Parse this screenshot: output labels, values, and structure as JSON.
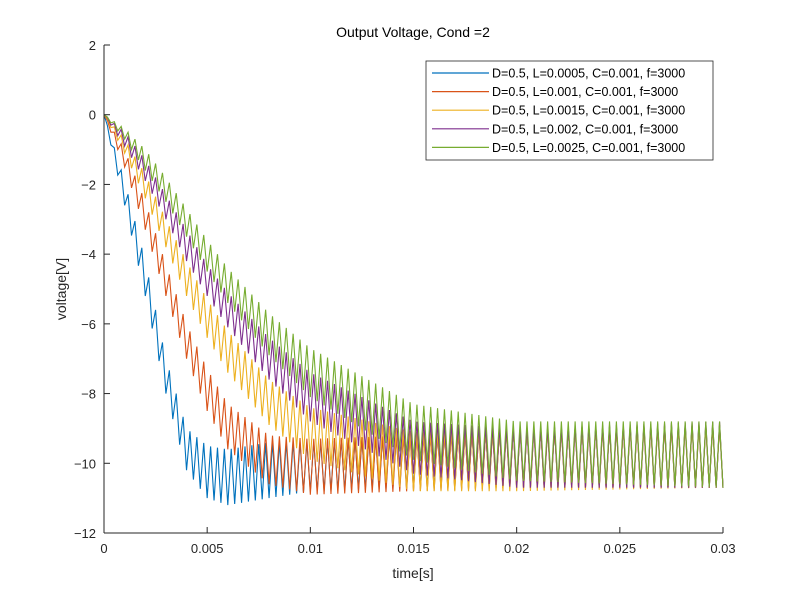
{
  "chart_data": {
    "type": "line",
    "title": "Output Voltage, Cond =2",
    "xlabel": "time[s]",
    "ylabel": "voltage[V]",
    "xlim": [
      0,
      0.03
    ],
    "ylim": [
      -12,
      2
    ],
    "xticks": [
      0,
      0.005,
      0.01,
      0.015,
      0.02,
      0.025,
      0.03
    ],
    "xtick_labels": [
      "0",
      "0.005",
      "0.01",
      "0.015",
      "0.02",
      "0.025",
      "0.03"
    ],
    "yticks": [
      2,
      0,
      -2,
      -4,
      -6,
      -8,
      -10,
      -12
    ],
    "ytick_labels": [
      "2",
      "0",
      "−2",
      "−4",
      "−6",
      "−8",
      "−10",
      "−12"
    ],
    "grid": false,
    "legend_position": "top-right",
    "ripple_frequency_hz": 3000,
    "envelope_times": [
      0,
      0.001,
      0.002,
      0.003,
      0.004,
      0.005,
      0.006,
      0.008,
      0.01,
      0.015,
      0.02,
      0.03
    ],
    "series": [
      {
        "name": "D=0.5, L=0.0005, C=0.001, f=3000",
        "color": "#0072BD",
        "lower": [
          0,
          -2.6,
          -5.2,
          -8.0,
          -10.2,
          -11.0,
          -11.2,
          -11.0,
          -10.8,
          -10.7,
          -10.7,
          -10.7
        ],
        "upper": [
          0,
          -1.9,
          -4.2,
          -7.0,
          -9.0,
          -9.5,
          -9.6,
          -9.4,
          -9.4,
          -9.2,
          -9.0,
          -8.9
        ]
      },
      {
        "name": "D=0.5, L=0.001, C=0.001, f=3000",
        "color": "#D95319",
        "lower": [
          0,
          -1.5,
          -3.3,
          -5.2,
          -7.0,
          -8.5,
          -9.6,
          -10.6,
          -10.9,
          -10.8,
          -10.7,
          -10.7
        ],
        "upper": [
          0,
          -1.0,
          -2.5,
          -4.3,
          -6.0,
          -7.3,
          -8.3,
          -9.2,
          -9.3,
          -9.2,
          -9.0,
          -8.9
        ]
      },
      {
        "name": "D=0.5, L=0.0015, C=0.001, f=3000",
        "color": "#EDB120",
        "lower": [
          0,
          -1.1,
          -2.4,
          -3.8,
          -5.2,
          -6.4,
          -7.4,
          -8.9,
          -9.9,
          -10.8,
          -10.8,
          -10.7
        ],
        "upper": [
          0,
          -0.7,
          -1.7,
          -3.0,
          -4.2,
          -5.3,
          -6.2,
          -7.6,
          -8.4,
          -9.1,
          -9.0,
          -8.9
        ]
      },
      {
        "name": "D=0.5, L=0.002, C=0.001, f=3000",
        "color": "#7E2F8E",
        "lower": [
          0,
          -0.9,
          -1.9,
          -3.0,
          -4.2,
          -5.2,
          -6.1,
          -7.6,
          -8.8,
          -10.3,
          -10.7,
          -10.7
        ],
        "upper": [
          0,
          -0.5,
          -1.3,
          -2.3,
          -3.3,
          -4.3,
          -5.1,
          -6.4,
          -7.4,
          -8.8,
          -9.0,
          -8.8
        ]
      },
      {
        "name": "D=0.5, L=0.0025, C=0.001, f=3000",
        "color": "#77AC30",
        "lower": [
          0,
          -0.7,
          -1.6,
          -2.5,
          -3.5,
          -4.5,
          -5.4,
          -6.9,
          -8.1,
          -9.9,
          -10.5,
          -10.7
        ],
        "upper": [
          0,
          -0.4,
          -1.0,
          -1.8,
          -2.7,
          -3.6,
          -4.4,
          -5.7,
          -6.7,
          -8.3,
          -8.8,
          -8.8
        ]
      }
    ]
  }
}
